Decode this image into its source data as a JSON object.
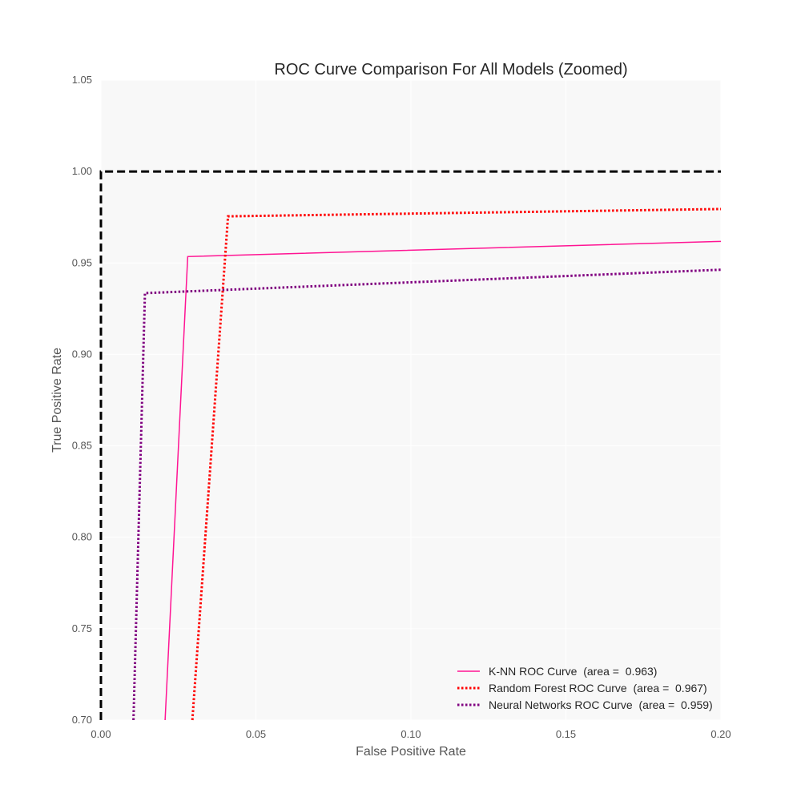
{
  "chart_data": {
    "type": "line",
    "title": "ROC Curve Comparison For All Models (Zoomed)",
    "xlabel": "False Positive Rate",
    "ylabel": "True Positive Rate",
    "xlim": [
      0.0,
      0.2
    ],
    "ylim": [
      0.7,
      1.05
    ],
    "xticks": [
      "0.00",
      "0.05",
      "0.10",
      "0.15",
      "0.20"
    ],
    "yticks": [
      "0.70",
      "0.75",
      "0.80",
      "0.85",
      "0.90",
      "0.95",
      "1.00",
      "1.05"
    ],
    "grid": true,
    "legend_position": "lower-right",
    "series": [
      {
        "name": "K-NN ROC Curve  (area =  0.963)",
        "color": "#ff1493",
        "style": "solid",
        "points": [
          [
            0.0207,
            0.7
          ],
          [
            0.028,
            0.9535
          ],
          [
            0.2,
            0.9618
          ]
        ]
      },
      {
        "name": "Random Forest ROC Curve  (area =  0.967)",
        "color": "#ff0000",
        "style": "dotted",
        "points": [
          [
            0.0295,
            0.7
          ],
          [
            0.041,
            0.9755
          ],
          [
            0.2,
            0.9795
          ]
        ]
      },
      {
        "name": "Neural Networks ROC Curve  (area =  0.959)",
        "color": "#800080",
        "style": "dotted",
        "points": [
          [
            0.0105,
            0.7
          ],
          [
            0.0142,
            0.9335
          ],
          [
            0.2,
            0.9463
          ]
        ]
      },
      {
        "name": "",
        "color": "#000000",
        "style": "dashed",
        "points": [
          [
            0.0,
            0.7
          ],
          [
            0.0,
            1.0
          ],
          [
            0.2,
            1.0
          ]
        ]
      }
    ]
  }
}
